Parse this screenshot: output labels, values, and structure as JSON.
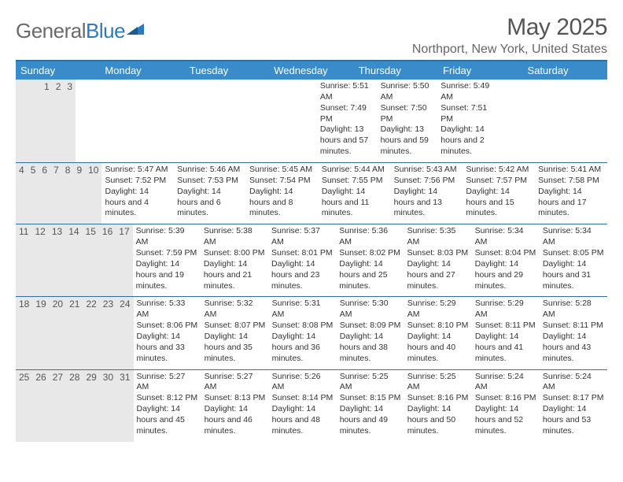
{
  "logo": {
    "part1": "General",
    "part2": "Blue"
  },
  "title": "May 2025",
  "location": "Northport, New York, United States",
  "dayNames": [
    "Sunday",
    "Monday",
    "Tuesday",
    "Wednesday",
    "Thursday",
    "Friday",
    "Saturday"
  ],
  "colors": {
    "headerBar": "#3a8bc9",
    "ruleLine": "#2f6fa8",
    "dayNumBg": "#e8e8e8",
    "titleText": "#555555",
    "bodyText": "#333333",
    "logoGray": "#6a6a6a",
    "logoBlue": "#2b7bbf",
    "background": "#ffffff"
  },
  "layout": {
    "pageWidth": 792,
    "pageHeight": 612,
    "columns": 7,
    "rows": 5,
    "cellBodyMinHeight": 62,
    "dayHeaderFontSize": 13,
    "dayNumFontSize": 12,
    "bodyFontSize": 10.5,
    "titleFontSize": 30,
    "locationFontSize": 16
  },
  "weeks": [
    [
      {
        "num": "",
        "lines": []
      },
      {
        "num": "",
        "lines": []
      },
      {
        "num": "",
        "lines": []
      },
      {
        "num": "",
        "lines": []
      },
      {
        "num": "1",
        "lines": [
          "Sunrise: 5:51 AM",
          "Sunset: 7:49 PM",
          "Daylight: 13 hours and 57 minutes."
        ]
      },
      {
        "num": "2",
        "lines": [
          "Sunrise: 5:50 AM",
          "Sunset: 7:50 PM",
          "Daylight: 13 hours and 59 minutes."
        ]
      },
      {
        "num": "3",
        "lines": [
          "Sunrise: 5:49 AM",
          "Sunset: 7:51 PM",
          "Daylight: 14 hours and 2 minutes."
        ]
      }
    ],
    [
      {
        "num": "4",
        "lines": [
          "Sunrise: 5:47 AM",
          "Sunset: 7:52 PM",
          "Daylight: 14 hours and 4 minutes."
        ]
      },
      {
        "num": "5",
        "lines": [
          "Sunrise: 5:46 AM",
          "Sunset: 7:53 PM",
          "Daylight: 14 hours and 6 minutes."
        ]
      },
      {
        "num": "6",
        "lines": [
          "Sunrise: 5:45 AM",
          "Sunset: 7:54 PM",
          "Daylight: 14 hours and 8 minutes."
        ]
      },
      {
        "num": "7",
        "lines": [
          "Sunrise: 5:44 AM",
          "Sunset: 7:55 PM",
          "Daylight: 14 hours and 11 minutes."
        ]
      },
      {
        "num": "8",
        "lines": [
          "Sunrise: 5:43 AM",
          "Sunset: 7:56 PM",
          "Daylight: 14 hours and 13 minutes."
        ]
      },
      {
        "num": "9",
        "lines": [
          "Sunrise: 5:42 AM",
          "Sunset: 7:57 PM",
          "Daylight: 14 hours and 15 minutes."
        ]
      },
      {
        "num": "10",
        "lines": [
          "Sunrise: 5:41 AM",
          "Sunset: 7:58 PM",
          "Daylight: 14 hours and 17 minutes."
        ]
      }
    ],
    [
      {
        "num": "11",
        "lines": [
          "Sunrise: 5:39 AM",
          "Sunset: 7:59 PM",
          "Daylight: 14 hours and 19 minutes."
        ]
      },
      {
        "num": "12",
        "lines": [
          "Sunrise: 5:38 AM",
          "Sunset: 8:00 PM",
          "Daylight: 14 hours and 21 minutes."
        ]
      },
      {
        "num": "13",
        "lines": [
          "Sunrise: 5:37 AM",
          "Sunset: 8:01 PM",
          "Daylight: 14 hours and 23 minutes."
        ]
      },
      {
        "num": "14",
        "lines": [
          "Sunrise: 5:36 AM",
          "Sunset: 8:02 PM",
          "Daylight: 14 hours and 25 minutes."
        ]
      },
      {
        "num": "15",
        "lines": [
          "Sunrise: 5:35 AM",
          "Sunset: 8:03 PM",
          "Daylight: 14 hours and 27 minutes."
        ]
      },
      {
        "num": "16",
        "lines": [
          "Sunrise: 5:34 AM",
          "Sunset: 8:04 PM",
          "Daylight: 14 hours and 29 minutes."
        ]
      },
      {
        "num": "17",
        "lines": [
          "Sunrise: 5:34 AM",
          "Sunset: 8:05 PM",
          "Daylight: 14 hours and 31 minutes."
        ]
      }
    ],
    [
      {
        "num": "18",
        "lines": [
          "Sunrise: 5:33 AM",
          "Sunset: 8:06 PM",
          "Daylight: 14 hours and 33 minutes."
        ]
      },
      {
        "num": "19",
        "lines": [
          "Sunrise: 5:32 AM",
          "Sunset: 8:07 PM",
          "Daylight: 14 hours and 35 minutes."
        ]
      },
      {
        "num": "20",
        "lines": [
          "Sunrise: 5:31 AM",
          "Sunset: 8:08 PM",
          "Daylight: 14 hours and 36 minutes."
        ]
      },
      {
        "num": "21",
        "lines": [
          "Sunrise: 5:30 AM",
          "Sunset: 8:09 PM",
          "Daylight: 14 hours and 38 minutes."
        ]
      },
      {
        "num": "22",
        "lines": [
          "Sunrise: 5:29 AM",
          "Sunset: 8:10 PM",
          "Daylight: 14 hours and 40 minutes."
        ]
      },
      {
        "num": "23",
        "lines": [
          "Sunrise: 5:29 AM",
          "Sunset: 8:11 PM",
          "Daylight: 14 hours and 41 minutes."
        ]
      },
      {
        "num": "24",
        "lines": [
          "Sunrise: 5:28 AM",
          "Sunset: 8:11 PM",
          "Daylight: 14 hours and 43 minutes."
        ]
      }
    ],
    [
      {
        "num": "25",
        "lines": [
          "Sunrise: 5:27 AM",
          "Sunset: 8:12 PM",
          "Daylight: 14 hours and 45 minutes."
        ]
      },
      {
        "num": "26",
        "lines": [
          "Sunrise: 5:27 AM",
          "Sunset: 8:13 PM",
          "Daylight: 14 hours and 46 minutes."
        ]
      },
      {
        "num": "27",
        "lines": [
          "Sunrise: 5:26 AM",
          "Sunset: 8:14 PM",
          "Daylight: 14 hours and 48 minutes."
        ]
      },
      {
        "num": "28",
        "lines": [
          "Sunrise: 5:25 AM",
          "Sunset: 8:15 PM",
          "Daylight: 14 hours and 49 minutes."
        ]
      },
      {
        "num": "29",
        "lines": [
          "Sunrise: 5:25 AM",
          "Sunset: 8:16 PM",
          "Daylight: 14 hours and 50 minutes."
        ]
      },
      {
        "num": "30",
        "lines": [
          "Sunrise: 5:24 AM",
          "Sunset: 8:16 PM",
          "Daylight: 14 hours and 52 minutes."
        ]
      },
      {
        "num": "31",
        "lines": [
          "Sunrise: 5:24 AM",
          "Sunset: 8:17 PM",
          "Daylight: 14 hours and 53 minutes."
        ]
      }
    ]
  ]
}
